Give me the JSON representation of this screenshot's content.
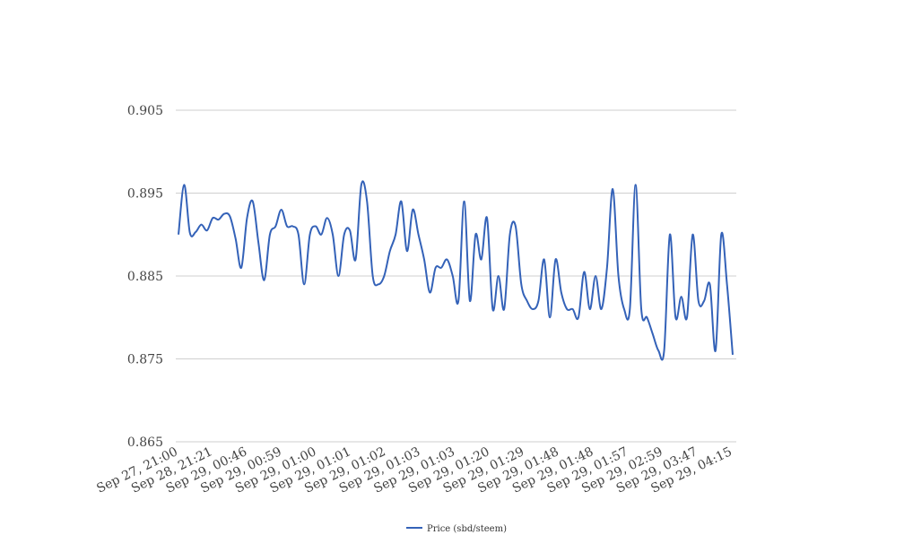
{
  "chart_data": {
    "type": "line",
    "title": "",
    "xlabel": "",
    "ylabel": "",
    "ylim": [
      0.865,
      0.905
    ],
    "y_ticks": [
      "0.865",
      "0.875",
      "0.885",
      "0.895",
      "0.905"
    ],
    "grid": "horizontal",
    "legend_placement": "bottom-center",
    "x_tick_labels": [
      "Sep 27, 21:00",
      "Sep 28, 21:21",
      "Sep 29, 00:46",
      "Sep 29, 00:59",
      "Sep 29, 01:00",
      "Sep 29, 01:01",
      "Sep 29, 01:02",
      "Sep 29, 01:03",
      "Sep 29, 01:03",
      "Sep 29, 01:20",
      "Sep 29, 01:29",
      "Sep 29, 01:48",
      "Sep 29, 01:48",
      "Sep 29, 01:57",
      "Sep 29, 02:59",
      "Sep 29, 03:47",
      "Sep 29, 04:15"
    ],
    "series": [
      {
        "name": "Price (sbd/steem)",
        "color": "#3462b8",
        "values": [
          0.89,
          0.896,
          0.8902,
          0.8903,
          0.8912,
          0.8905,
          0.892,
          0.8918,
          0.8925,
          0.8922,
          0.8895,
          0.886,
          0.892,
          0.894,
          0.889,
          0.8845,
          0.89,
          0.891,
          0.893,
          0.891,
          0.891,
          0.89,
          0.884,
          0.89,
          0.891,
          0.89,
          0.892,
          0.89,
          0.885,
          0.89,
          0.8905,
          0.887,
          0.896,
          0.894,
          0.885,
          0.884,
          0.885,
          0.888,
          0.89,
          0.894,
          0.888,
          0.893,
          0.89,
          0.887,
          0.883,
          0.886,
          0.886,
          0.887,
          0.885,
          0.882,
          0.894,
          0.882,
          0.89,
          0.887,
          0.892,
          0.881,
          0.885,
          0.881,
          0.89,
          0.891,
          0.884,
          0.882,
          0.881,
          0.882,
          0.887,
          0.88,
          0.887,
          0.883,
          0.881,
          0.881,
          0.88,
          0.8855,
          0.881,
          0.885,
          0.881,
          0.886,
          0.8955,
          0.885,
          0.881,
          0.881,
          0.896,
          0.881,
          0.88,
          0.878,
          0.876,
          0.876,
          0.89,
          0.88,
          0.8825,
          0.88,
          0.89,
          0.882,
          0.882,
          0.884,
          0.876,
          0.89,
          0.884,
          0.8755
        ]
      }
    ]
  }
}
